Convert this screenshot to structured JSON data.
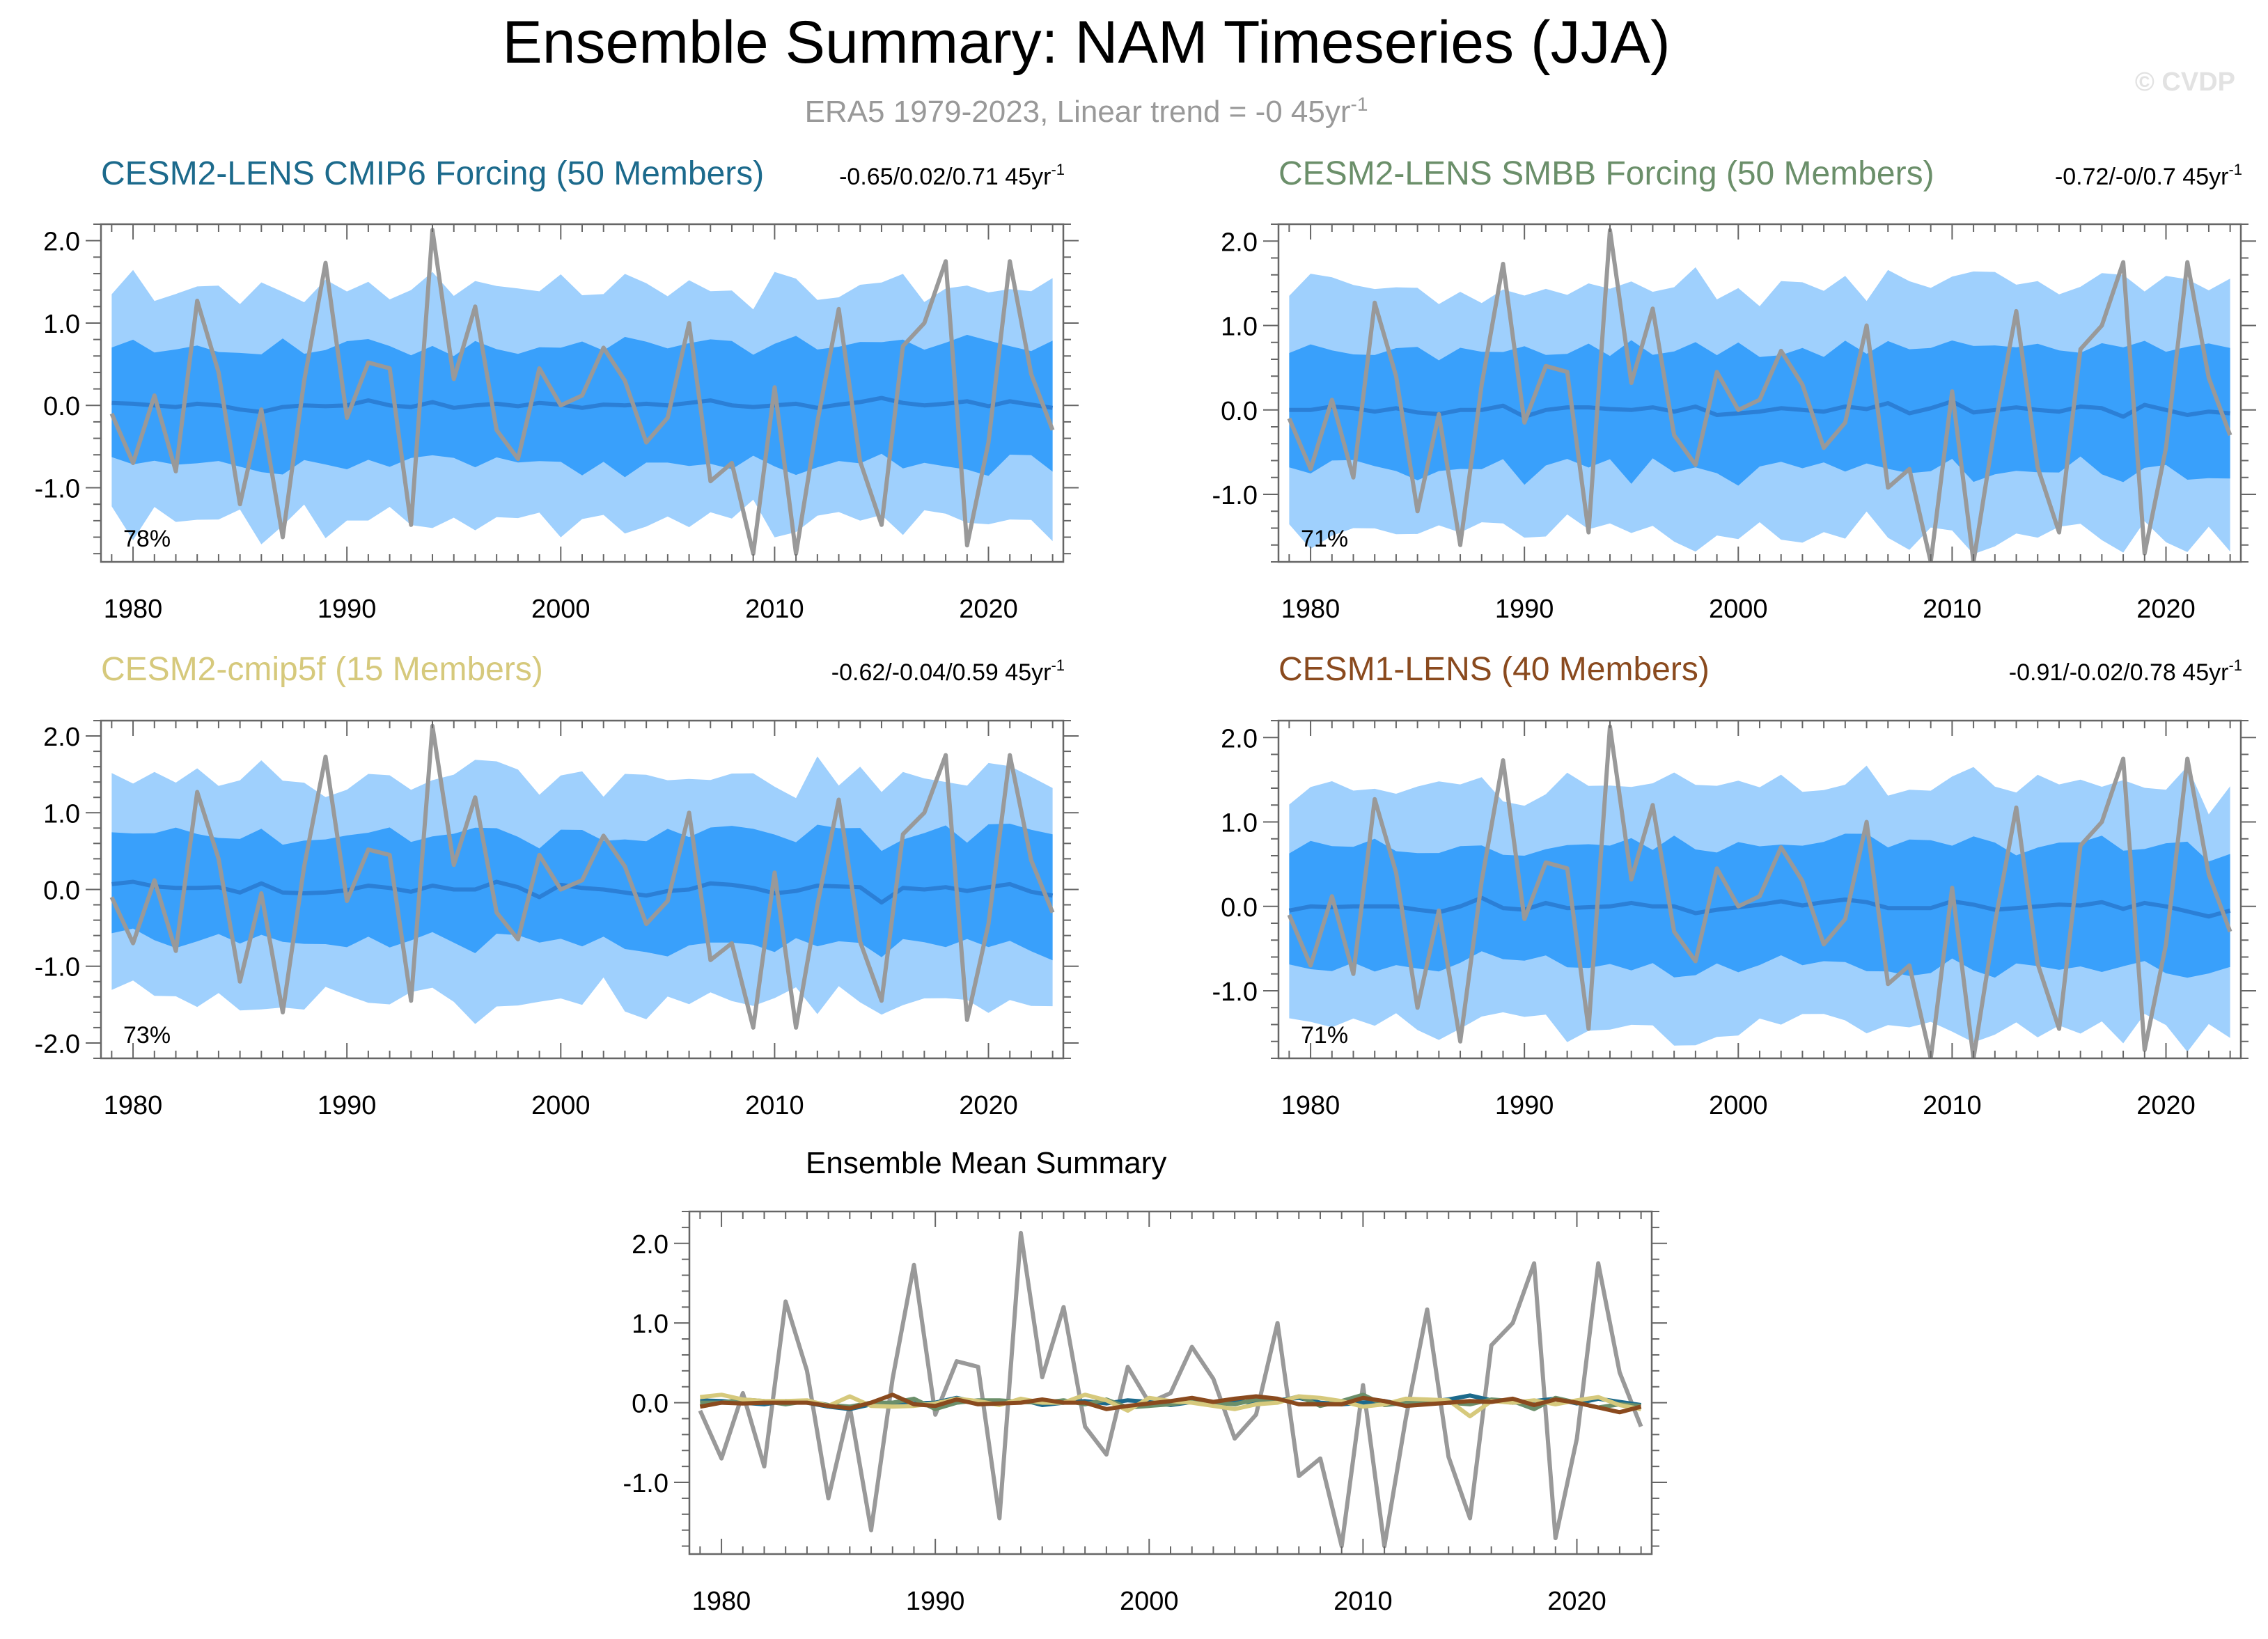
{
  "title": "Ensemble Summary: NAM Timeseries (JJA)",
  "subtitle_main": "ERA5 1979-2023, Linear trend = -0 45yr",
  "subtitle_sup": "-1",
  "watermark": "© CVDP",
  "colors": {
    "band_outer": "#9fd0fd",
    "band_inner": "#39a0fb",
    "ens_mean": "#2b7fd6",
    "obs": "#999999",
    "axis": "#666666"
  },
  "chart_data": [
    {
      "type": "line",
      "title": "CESM2-LENS CMIP6 Forcing (50 Members)",
      "title_color": "#1c6a8c",
      "trend_main": "-0.65/0.02/0.71 45yr",
      "trend_sup": "-1",
      "percent": "78%",
      "ylim": [
        -1.9,
        2.2
      ],
      "yticks": [
        2.0,
        1.0,
        0.0,
        -1.0
      ],
      "ytick_labels": [
        "2.0",
        "1.0",
        "0.0",
        "-1.0"
      ],
      "xlim": [
        1978.5,
        2023.5
      ],
      "xticks": [
        1980,
        1990,
        2000,
        2010,
        2020
      ],
      "xtick_labels": [
        "1980",
        "1990",
        "2000",
        "2010",
        "2020"
      ],
      "seed": 11
    },
    {
      "type": "line",
      "title": "CESM2-LENS SMBB Forcing (50 Members)",
      "title_color": "#6b8f6a",
      "trend_main": "-0.72/-0/0.7 45yr",
      "trend_sup": "-1",
      "percent": "71%",
      "ylim": [
        -1.8,
        2.2
      ],
      "yticks": [
        2.0,
        1.0,
        0.0,
        -1.0
      ],
      "ytick_labels": [
        "2.0",
        "1.0",
        "0.0",
        "-1.0"
      ],
      "xlim": [
        1978.5,
        2023.5
      ],
      "xticks": [
        1980,
        1990,
        2000,
        2010,
        2020
      ],
      "xtick_labels": [
        "1980",
        "1990",
        "2000",
        "2010",
        "2020"
      ],
      "seed": 23
    },
    {
      "type": "line",
      "title": "CESM2-cmip5f (15 Members)",
      "title_color": "#d6c97c",
      "trend_main": "-0.62/-0.04/0.59 45yr",
      "trend_sup": "-1",
      "percent": "73%",
      "ylim": [
        -2.2,
        2.2
      ],
      "yticks": [
        2.0,
        1.0,
        0.0,
        -1.0,
        -2.0
      ],
      "ytick_labels": [
        "2.0",
        "1.0",
        "0.0",
        "-1.0",
        "-2.0"
      ],
      "xlim": [
        1978.5,
        2023.5
      ],
      "xticks": [
        1980,
        1990,
        2000,
        2010,
        2020
      ],
      "xtick_labels": [
        "1980",
        "1990",
        "2000",
        "2010",
        "2020"
      ],
      "seed": 37
    },
    {
      "type": "line",
      "title": "CESM1-LENS (40 Members)",
      "title_color": "#8a4a1e",
      "trend_main": "-0.91/-0.02/0.78 45yr",
      "trend_sup": "-1",
      "percent": "71%",
      "ylim": [
        -1.8,
        2.2
      ],
      "yticks": [
        2.0,
        1.0,
        0.0,
        -1.0
      ],
      "ytick_labels": [
        "2.0",
        "1.0",
        "0.0",
        "-1.0"
      ],
      "xlim": [
        1978.5,
        2023.5
      ],
      "xticks": [
        1980,
        1990,
        2000,
        2010,
        2020
      ],
      "xtick_labels": [
        "1980",
        "1990",
        "2000",
        "2010",
        "2020"
      ],
      "seed": 53
    },
    {
      "type": "line",
      "title": "Ensemble Mean Summary",
      "title_color": "#000000",
      "ylim": [
        -1.9,
        2.4
      ],
      "yticks": [
        2.0,
        1.0,
        0.0,
        -1.0
      ],
      "ytick_labels": [
        "2.0",
        "1.0",
        "0.0",
        "-1.0"
      ],
      "xlim": [
        1978.5,
        2023.5
      ],
      "xticks": [
        1980,
        1990,
        2000,
        2010,
        2020
      ],
      "xtick_labels": [
        "1980",
        "1990",
        "2000",
        "2010",
        "2020"
      ],
      "series_colors": [
        "#1c6a8c",
        "#6b8f6a",
        "#d6c97c",
        "#8a4a1e"
      ]
    }
  ],
  "years": [
    1979,
    1980,
    1981,
    1982,
    1983,
    1984,
    1985,
    1986,
    1987,
    1988,
    1989,
    1990,
    1991,
    1992,
    1993,
    1994,
    1995,
    1996,
    1997,
    1998,
    1999,
    2000,
    2001,
    2002,
    2003,
    2004,
    2005,
    2006,
    2007,
    2008,
    2009,
    2010,
    2011,
    2012,
    2013,
    2014,
    2015,
    2016,
    2017,
    2018,
    2019,
    2020,
    2021,
    2022,
    2023
  ],
  "obs_era5": [
    -0.1,
    -0.7,
    0.12,
    -0.8,
    1.27,
    0.4,
    -1.2,
    -0.05,
    -1.6,
    0.3,
    1.73,
    -0.15,
    0.52,
    0.45,
    -1.45,
    2.13,
    0.32,
    1.2,
    -0.3,
    -0.65,
    0.45,
    0.0,
    0.12,
    0.7,
    0.3,
    -0.45,
    -0.15,
    1.0,
    -0.92,
    -0.7,
    -1.8,
    0.22,
    -1.8,
    -0.2,
    1.17,
    -0.68,
    -1.45,
    0.72,
    1.0,
    1.75,
    -1.7,
    -0.45,
    1.75,
    0.38,
    -0.3
  ],
  "ensemble_means": {
    "CESM2-LENS CMIP6 Forcing": [
      0.03,
      0.02,
      0.0,
      -0.02,
      0.02,
      0.0,
      -0.05,
      -0.08,
      -0.02,
      0.0,
      -0.01,
      0.0,
      0.06,
      0.0,
      -0.02,
      0.04,
      -0.03,
      0.0,
      0.02,
      -0.01,
      0.03,
      0.01,
      -0.03,
      0.01,
      0.0,
      0.02,
      0.0,
      0.03,
      0.06,
      0.0,
      -0.02,
      0.0,
      0.02,
      -0.03,
      0.01,
      0.04,
      0.09,
      0.03,
      0.0,
      0.02,
      0.05,
      -0.01,
      0.05,
      0.01,
      -0.03
    ],
    "CESM2-LENS SMBB Forcing": [
      0.0,
      0.0,
      0.04,
      0.02,
      -0.02,
      0.02,
      -0.03,
      -0.05,
      0.0,
      0.0,
      0.05,
      -0.08,
      0.0,
      0.03,
      0.03,
      0.01,
      0.0,
      0.03,
      -0.02,
      0.04,
      -0.06,
      -0.04,
      -0.02,
      0.02,
      0.0,
      -0.02,
      0.04,
      0.01,
      0.08,
      -0.04,
      0.02,
      0.1,
      -0.03,
      0.0,
      0.03,
      0.0,
      -0.02,
      0.04,
      0.02,
      -0.08,
      0.06,
      0.0,
      -0.06,
      -0.02,
      -0.04
    ],
    "CESM2-cmip5f": [
      0.07,
      0.1,
      0.04,
      0.02,
      0.02,
      0.03,
      -0.04,
      0.08,
      -0.04,
      -0.05,
      -0.04,
      -0.01,
      0.05,
      0.02,
      -0.03,
      0.05,
      0.0,
      0.0,
      0.1,
      0.03,
      -0.1,
      0.06,
      0.02,
      0.0,
      -0.04,
      -0.08,
      -0.02,
      0.0,
      0.08,
      0.06,
      0.02,
      -0.05,
      -0.02,
      0.05,
      0.04,
      0.03,
      -0.17,
      0.02,
      0.0,
      0.03,
      -0.02,
      0.03,
      0.07,
      -0.03,
      -0.08
    ],
    "CESM1-LENS": [
      -0.05,
      0.0,
      -0.01,
      0.0,
      0.0,
      0.0,
      -0.04,
      -0.07,
      0.0,
      0.1,
      -0.02,
      -0.04,
      0.04,
      -0.02,
      -0.01,
      0.0,
      0.04,
      0.0,
      0.0,
      -0.08,
      -0.04,
      -0.01,
      0.02,
      0.06,
      0.01,
      0.05,
      0.08,
      0.05,
      -0.02,
      -0.02,
      -0.02,
      0.06,
      0.02,
      -0.04,
      -0.02,
      0.0,
      0.02,
      0.01,
      0.05,
      -0.03,
      0.04,
      0.0,
      -0.06,
      -0.12,
      -0.05
    ]
  }
}
